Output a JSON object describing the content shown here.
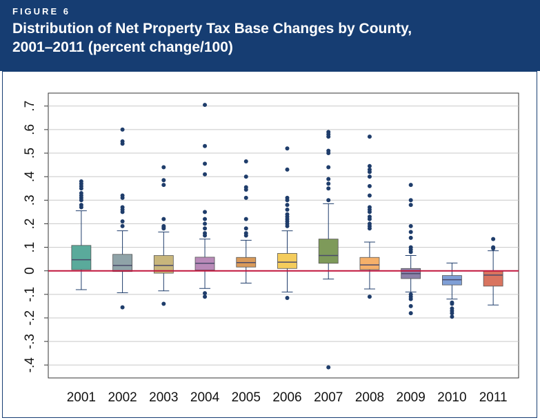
{
  "header": {
    "label": "FIGURE 6",
    "title_lines": [
      "Distribution of Net Property Tax Base Changes by County,",
      "2001–2011 (percent change/100)"
    ]
  },
  "chart_data": {
    "type": "box",
    "ylim": [
      -0.455,
      0.755
    ],
    "yticks": [
      {
        "value": 0.7,
        "label": ".7"
      },
      {
        "value": 0.6,
        "label": ".6"
      },
      {
        "value": 0.5,
        "label": ".5"
      },
      {
        "value": 0.4,
        "label": ".4"
      },
      {
        "value": 0.3,
        "label": ".3"
      },
      {
        "value": 0.2,
        "label": ".2"
      },
      {
        "value": 0.1,
        "label": ".1"
      },
      0,
      {
        "value": -0.1,
        "label": "-.1"
      },
      {
        "value": -0.2,
        "label": "-.2"
      },
      {
        "value": -0.3,
        "label": "-.3"
      },
      {
        "value": -0.4,
        "label": "-.4"
      }
    ],
    "grid": true,
    "reference_line": {
      "value": 0,
      "color": "#c0143c"
    },
    "outlier_color": "#1f3d6b",
    "series": [
      {
        "name": "2001",
        "color": "#5aaa9b",
        "whisker_low": -0.08,
        "q1": 0.005,
        "median": 0.047,
        "q3": 0.108,
        "whisker_high": 0.255,
        "outliers": [
          0.38,
          0.37,
          0.36,
          0.35,
          0.33,
          0.32,
          0.31,
          0.3,
          0.28,
          0.27
        ]
      },
      {
        "name": "2002",
        "color": "#8fa3a8",
        "whisker_low": -0.093,
        "q1": -0.003,
        "median": 0.023,
        "q3": 0.07,
        "whisker_high": 0.17,
        "outliers": [
          0.6,
          0.55,
          0.54,
          0.32,
          0.31,
          0.27,
          0.26,
          0.25,
          0.21,
          0.19,
          -0.155
        ]
      },
      {
        "name": "2003",
        "color": "#c8b67c",
        "whisker_low": -0.085,
        "q1": -0.01,
        "median": 0.023,
        "q3": 0.065,
        "whisker_high": 0.165,
        "outliers": [
          0.44,
          0.385,
          0.365,
          0.22,
          0.19,
          0.185,
          0.18,
          -0.14
        ]
      },
      {
        "name": "2004",
        "color": "#b98ab8",
        "whisker_low": -0.075,
        "q1": 0.003,
        "median": 0.032,
        "q3": 0.058,
        "whisker_high": 0.135,
        "outliers": [
          0.705,
          0.53,
          0.455,
          0.41,
          0.25,
          0.22,
          0.2,
          0.18,
          0.16,
          0.15,
          -0.095,
          -0.11
        ]
      },
      {
        "name": "2005",
        "color": "#d99a5a",
        "whisker_low": -0.052,
        "q1": 0.016,
        "median": 0.035,
        "q3": 0.057,
        "whisker_high": 0.13,
        "outliers": [
          0.465,
          0.4,
          0.355,
          0.345,
          0.31,
          0.22,
          0.18,
          0.16,
          0.15
        ]
      },
      {
        "name": "2006",
        "color": "#f4cc5c",
        "whisker_low": -0.09,
        "q1": 0.01,
        "median": 0.037,
        "q3": 0.074,
        "whisker_high": 0.17,
        "outliers": [
          0.52,
          0.43,
          0.31,
          0.3,
          0.28,
          0.26,
          0.24,
          0.23,
          0.22,
          0.21,
          0.2,
          0.19,
          -0.115
        ]
      },
      {
        "name": "2007",
        "color": "#7e9a5a",
        "whisker_low": -0.035,
        "q1": 0.032,
        "median": 0.065,
        "q3": 0.135,
        "whisker_high": 0.285,
        "outliers": [
          0.59,
          0.58,
          0.57,
          0.51,
          0.5,
          0.44,
          0.39,
          0.37,
          0.35,
          0.3,
          -0.41
        ]
      },
      {
        "name": "2008",
        "color": "#f5b06a",
        "whisker_low": -0.077,
        "q1": 0.005,
        "median": 0.025,
        "q3": 0.057,
        "whisker_high": 0.122,
        "outliers": [
          0.57,
          0.445,
          0.43,
          0.42,
          0.4,
          0.36,
          0.32,
          0.27,
          0.26,
          0.25,
          0.23,
          0.22,
          0.2,
          0.19,
          0.18,
          -0.11
        ]
      },
      {
        "name": "2009",
        "color": "#8c81a8",
        "whisker_low": -0.09,
        "q1": -0.033,
        "median": -0.012,
        "q3": 0.01,
        "whisker_high": 0.065,
        "outliers": [
          0.365,
          0.3,
          0.28,
          0.19,
          0.165,
          0.14,
          0.1,
          0.09,
          0.08,
          -0.1,
          -0.11,
          -0.12,
          -0.15,
          -0.18
        ]
      },
      {
        "name": "2010",
        "color": "#7f9fd6",
        "whisker_low": -0.12,
        "q1": -0.06,
        "median": -0.038,
        "q3": -0.02,
        "whisker_high": 0.033,
        "outliers": [
          -0.135,
          -0.14,
          -0.16,
          -0.17,
          -0.18,
          -0.195
        ]
      },
      {
        "name": "2011",
        "color": "#d9745f",
        "whisker_low": -0.145,
        "q1": -0.065,
        "median": -0.018,
        "q3": 0.0,
        "whisker_high": 0.085,
        "outliers": [
          0.135,
          0.1,
          0.095
        ]
      }
    ]
  }
}
